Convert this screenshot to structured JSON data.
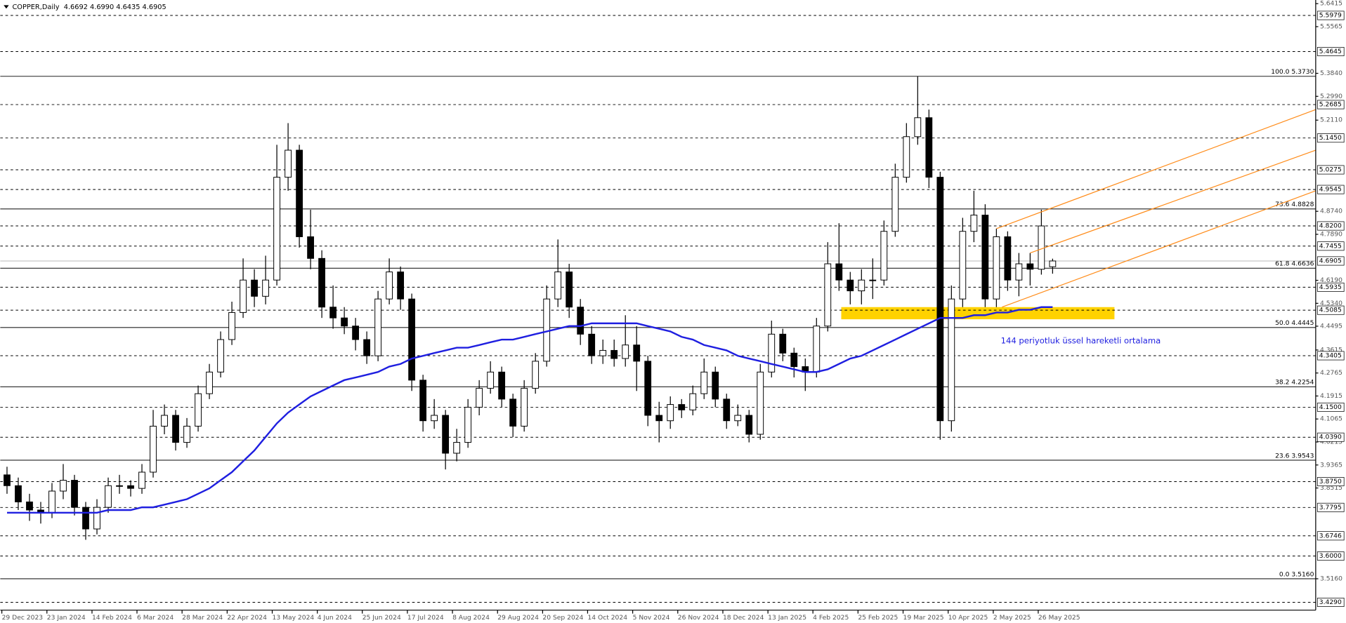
{
  "chart_data": {
    "type": "candlestick",
    "title": "COPPER,Daily  4.6692 4.6990 4.6435 4.6905",
    "open": [
      3.9,
      3.86,
      3.8,
      3.77,
      3.76,
      3.84,
      3.88,
      3.78,
      3.7,
      3.78,
      3.86,
      3.86,
      3.85,
      3.91,
      4.08,
      4.12,
      4.02,
      4.08,
      4.2,
      4.28,
      4.4,
      4.5,
      4.62,
      4.56,
      4.62,
      5.0,
      5.1,
      4.78,
      4.7,
      4.52,
      4.48,
      4.45,
      4.4,
      4.34,
      4.55,
      4.65,
      4.55,
      4.25,
      4.1,
      4.12,
      3.98,
      4.02,
      4.15,
      4.22,
      4.28,
      4.18,
      4.08,
      4.22,
      4.32,
      4.55,
      4.65,
      4.52,
      4.42,
      4.34,
      4.36,
      4.33,
      4.38,
      4.32,
      4.12,
      4.1,
      4.16,
      4.14,
      4.2,
      4.28,
      4.18,
      4.1,
      4.12,
      4.05,
      4.28,
      4.42,
      4.35,
      4.3,
      4.28,
      4.45,
      4.68,
      4.62,
      4.58,
      4.62,
      4.62,
      4.8,
      5.0,
      5.15,
      5.22,
      5.0,
      4.1,
      4.55,
      4.8,
      4.86,
      4.55,
      4.78,
      4.62,
      4.68,
      4.66,
      4.6692
    ],
    "high": [
      3.93,
      3.89,
      3.83,
      3.8,
      3.87,
      3.94,
      3.9,
      3.8,
      3.81,
      3.89,
      3.9,
      3.88,
      3.94,
      4.14,
      4.16,
      4.14,
      4.11,
      4.23,
      4.31,
      4.43,
      4.54,
      4.7,
      4.66,
      4.71,
      5.12,
      5.2,
      5.12,
      4.88,
      4.73,
      4.6,
      4.52,
      4.48,
      4.43,
      4.58,
      4.7,
      4.67,
      4.57,
      4.27,
      4.18,
      4.14,
      4.07,
      4.18,
      4.25,
      4.32,
      4.3,
      4.2,
      4.25,
      4.35,
      4.6,
      4.77,
      4.68,
      4.55,
      4.45,
      4.4,
      4.4,
      4.49,
      4.45,
      4.34,
      4.17,
      4.19,
      4.18,
      4.23,
      4.33,
      4.3,
      4.2,
      4.16,
      4.14,
      4.31,
      4.47,
      4.44,
      4.37,
      4.33,
      4.48,
      4.76,
      4.83,
      4.65,
      4.66,
      4.7,
      4.84,
      5.05,
      5.2,
      5.373,
      5.25,
      5.02,
      4.6,
      4.85,
      4.95,
      4.9,
      4.81,
      4.8,
      4.72,
      4.72,
      4.88,
      4.699
    ],
    "low": [
      3.83,
      3.77,
      3.73,
      3.72,
      3.74,
      3.81,
      3.75,
      3.66,
      3.68,
      3.76,
      3.83,
      3.82,
      3.83,
      3.89,
      4.05,
      3.99,
      4.0,
      4.06,
      4.18,
      4.26,
      4.38,
      4.48,
      4.52,
      4.53,
      4.6,
      4.95,
      4.74,
      4.66,
      4.48,
      4.44,
      4.42,
      4.36,
      4.31,
      4.32,
      4.53,
      4.51,
      4.21,
      4.06,
      4.07,
      3.92,
      3.95,
      4.0,
      4.12,
      4.2,
      4.15,
      4.04,
      4.06,
      4.2,
      4.3,
      4.52,
      4.48,
      4.38,
      4.31,
      4.31,
      4.3,
      4.3,
      4.21,
      4.08,
      4.02,
      4.07,
      4.11,
      4.12,
      4.18,
      4.15,
      4.07,
      4.08,
      4.02,
      4.03,
      4.26,
      4.32,
      4.26,
      4.21,
      4.26,
      4.43,
      4.58,
      4.53,
      4.53,
      4.55,
      4.6,
      4.78,
      4.98,
      5.12,
      4.96,
      4.03,
      4.06,
      4.52,
      4.76,
      4.52,
      4.52,
      4.58,
      4.56,
      4.6,
      4.64,
      4.6435
    ],
    "close": [
      3.86,
      3.8,
      3.77,
      3.76,
      3.84,
      3.88,
      3.78,
      3.7,
      3.78,
      3.86,
      3.86,
      3.85,
      3.91,
      4.08,
      4.12,
      4.02,
      4.08,
      4.2,
      4.28,
      4.4,
      4.5,
      4.62,
      4.56,
      4.62,
      5.0,
      5.1,
      4.78,
      4.7,
      4.52,
      4.48,
      4.45,
      4.4,
      4.34,
      4.55,
      4.65,
      4.55,
      4.25,
      4.1,
      4.12,
      3.98,
      4.02,
      4.15,
      4.22,
      4.28,
      4.18,
      4.08,
      4.22,
      4.32,
      4.55,
      4.65,
      4.52,
      4.42,
      4.34,
      4.36,
      4.33,
      4.38,
      4.32,
      4.12,
      4.1,
      4.16,
      4.14,
      4.2,
      4.28,
      4.18,
      4.1,
      4.12,
      4.05,
      4.28,
      4.42,
      4.35,
      4.3,
      4.28,
      4.45,
      4.68,
      4.62,
      4.58,
      4.62,
      4.62,
      4.8,
      5.0,
      5.15,
      5.22,
      5.0,
      4.1,
      4.55,
      4.8,
      4.86,
      4.55,
      4.78,
      4.62,
      4.68,
      4.66,
      4.82,
      4.6905
    ],
    "colors": {
      "up": "#ffffff",
      "down": "#000000",
      "wick": "#000000"
    },
    "ema": {
      "name": "144 periyotluk üssel hareketli ortalama",
      "color": "#1f1fe0",
      "values": [
        3.76,
        3.76,
        3.76,
        3.76,
        3.76,
        3.76,
        3.76,
        3.76,
        3.76,
        3.77,
        3.77,
        3.77,
        3.78,
        3.78,
        3.79,
        3.8,
        3.81,
        3.83,
        3.85,
        3.88,
        3.91,
        3.95,
        3.99,
        4.04,
        4.09,
        4.13,
        4.16,
        4.19,
        4.21,
        4.23,
        4.25,
        4.26,
        4.27,
        4.28,
        4.3,
        4.31,
        4.33,
        4.34,
        4.35,
        4.36,
        4.37,
        4.37,
        4.38,
        4.39,
        4.4,
        4.4,
        4.41,
        4.42,
        4.43,
        4.44,
        4.45,
        4.45,
        4.46,
        4.46,
        4.46,
        4.46,
        4.46,
        4.45,
        4.44,
        4.43,
        4.41,
        4.4,
        4.38,
        4.37,
        4.36,
        4.34,
        4.33,
        4.32,
        4.31,
        4.3,
        4.29,
        4.28,
        4.28,
        4.29,
        4.31,
        4.33,
        4.34,
        4.36,
        4.38,
        4.4,
        4.42,
        4.44,
        4.46,
        4.48,
        4.48,
        4.48,
        4.49,
        4.49,
        4.5,
        4.5,
        4.51,
        4.51,
        4.52,
        4.52
      ]
    },
    "levels": [
      {
        "value": 5.5979,
        "label": "5.5979"
      },
      {
        "value": 5.4645,
        "label": "5.4645"
      },
      {
        "value": 5.2685,
        "label": "5.2685"
      },
      {
        "value": 5.145,
        "label": "5.1450"
      },
      {
        "value": 5.0275,
        "label": "5.0275"
      },
      {
        "value": 4.9545,
        "label": "4.9545"
      },
      {
        "value": 4.82,
        "label": "4.8200"
      },
      {
        "value": 4.7455,
        "label": "4.7455"
      },
      {
        "value": 4.5935,
        "label": "4.5935"
      },
      {
        "value": 4.5085,
        "label": "4.5085"
      },
      {
        "value": 4.3405,
        "label": "4.3405"
      },
      {
        "value": 4.15,
        "label": "4.1500"
      },
      {
        "value": 4.039,
        "label": "4.0390"
      },
      {
        "value": 3.875,
        "label": "3.8750"
      },
      {
        "value": 3.7795,
        "label": "3.7795"
      },
      {
        "value": 3.6746,
        "label": "3.6746"
      },
      {
        "value": 3.6,
        "label": "3.6000"
      },
      {
        "value": 3.429,
        "label": "3.4290"
      }
    ],
    "current_price": {
      "value": 4.6905,
      "label": "4.6905"
    },
    "fibonacci": [
      {
        "value": 5.373,
        "label": "100.0 5.3730"
      },
      {
        "value": 4.8828,
        "label": "73.6 4.8828"
      },
      {
        "value": 4.6636,
        "label": "61.8 4.6636"
      },
      {
        "value": 4.4445,
        "label": "50.0 4.4445"
      },
      {
        "value": 4.2254,
        "label": "38.2 4.2254"
      },
      {
        "value": 3.9543,
        "label": "23.6 3.9543"
      },
      {
        "value": 3.516,
        "label": "0.0 3.5160"
      }
    ],
    "channel": {
      "color": "#ff8c1a",
      "lines": [
        {
          "x": [
            88,
            116.4
          ],
          "y": [
            4.81,
            5.25
          ]
        },
        {
          "x": [
            91,
            116.4
          ],
          "y": [
            4.72,
            5.1
          ]
        },
        {
          "x": [
            88.5,
            116.4
          ],
          "y": [
            4.52,
            4.95
          ]
        }
      ]
    },
    "zone": {
      "color": "#ffd200",
      "x": [
        74.2,
        98.5
      ],
      "y": [
        4.475,
        4.52
      ]
    },
    "xlim": [
      -0.6,
      116.4
    ],
    "ylim": [
      3.4,
      5.655
    ],
    "yticks": [
      {
        "value": 5.6415,
        "label": "5.6415"
      },
      {
        "value": 5.5565,
        "label": "5.5565"
      },
      {
        "value": 5.384,
        "label": "5.3840"
      },
      {
        "value": 5.299,
        "label": "5.2990"
      },
      {
        "value": 5.211,
        "label": "5.2110"
      },
      {
        "value": 4.874,
        "label": "4.8740"
      },
      {
        "value": 4.789,
        "label": "4.7890"
      },
      {
        "value": 4.619,
        "label": "4.6190"
      },
      {
        "value": 4.534,
        "label": "4.5340"
      },
      {
        "value": 4.4495,
        "label": "4.4495"
      },
      {
        "value": 4.3615,
        "label": "4.3615"
      },
      {
        "value": 4.2765,
        "label": "4.2765"
      },
      {
        "value": 4.1915,
        "label": "4.1915"
      },
      {
        "value": 4.1065,
        "label": "4.1065"
      },
      {
        "value": 4.0215,
        "label": "4.0215"
      },
      {
        "value": 3.9365,
        "label": "3.9365"
      },
      {
        "value": 3.8515,
        "label": "3.8515"
      },
      {
        "value": 3.516,
        "label": "3.5160"
      }
    ],
    "xticks": [
      {
        "value": -0.46,
        "label": "29 Dec 2023"
      },
      {
        "value": 3.55,
        "label": "23 Jan 2024"
      },
      {
        "value": 7.56,
        "label": "14 Feb 2024"
      },
      {
        "value": 11.56,
        "label": "6 Mar 2024"
      },
      {
        "value": 15.57,
        "label": "28 Mar 2024"
      },
      {
        "value": 19.58,
        "label": "22 Apr 2024"
      },
      {
        "value": 23.59,
        "label": "13 May 2024"
      },
      {
        "value": 27.6,
        "label": "4 Jun 2024"
      },
      {
        "value": 31.6,
        "label": "25 Jun 2024"
      },
      {
        "value": 35.61,
        "label": "17 Jul 2024"
      },
      {
        "value": 39.62,
        "label": "8 Aug 2024"
      },
      {
        "value": 43.63,
        "label": "29 Aug 2024"
      },
      {
        "value": 47.64,
        "label": "20 Sep 2024"
      },
      {
        "value": 51.64,
        "label": "14 Oct 2024"
      },
      {
        "value": 55.65,
        "label": "5 Nov 2024"
      },
      {
        "value": 59.66,
        "label": "26 Nov 2024"
      },
      {
        "value": 63.67,
        "label": "18 Dec 2024"
      },
      {
        "value": 67.68,
        "label": "13 Jan 2025"
      },
      {
        "value": 71.68,
        "label": "4 Feb 2025"
      },
      {
        "value": 75.69,
        "label": "25 Feb 2025"
      },
      {
        "value": 79.7,
        "label": "19 Mar 2025"
      },
      {
        "value": 83.71,
        "label": "10 Apr 2025"
      },
      {
        "value": 87.72,
        "label": "2 May 2025"
      },
      {
        "value": 91.72,
        "label": "26 May 2025"
      }
    ]
  }
}
